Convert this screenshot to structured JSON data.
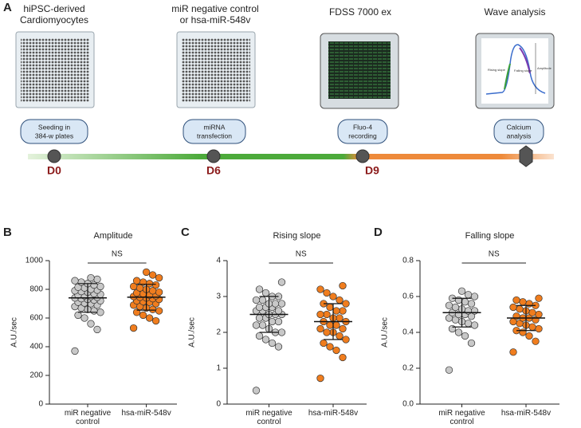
{
  "workflow": {
    "panel_label": "A",
    "steps": [
      {
        "title": [
          "hiPSC-derived",
          "Cardiomyocytes"
        ],
        "box": [
          "Seeding in",
          "384-w plates"
        ],
        "day": "D0"
      },
      {
        "title": [
          "miR negative control",
          "or hsa-miR-548v"
        ],
        "box": [
          "miRNA",
          "transfection"
        ],
        "day": "D6"
      },
      {
        "title": [
          "FDSS 7000 ex"
        ],
        "box": [
          "Fluo-4",
          "recording"
        ],
        "day": "D9"
      },
      {
        "title": [
          "Wave analysis"
        ],
        "box": [
          "Calcium",
          "analysis"
        ]
      }
    ],
    "wave_labels": [
      "Rising slope",
      "Falling slope",
      "Amplitude"
    ]
  },
  "chart_data": [
    {
      "type": "strip",
      "panel_label": "B",
      "title": "Amplitude",
      "ylabel": "A.U./sec",
      "categories": [
        "miR negative control",
        "hsa-miR-548v"
      ],
      "series": [
        {
          "color": "#c8c8c8",
          "mean": 740,
          "sd": 100,
          "values": [
            370,
            520,
            560,
            600,
            620,
            640,
            650,
            660,
            670,
            680,
            690,
            700,
            705,
            710,
            720,
            725,
            730,
            735,
            740,
            745,
            750,
            755,
            760,
            765,
            770,
            780,
            785,
            790,
            795,
            800,
            810,
            815,
            820,
            830,
            840,
            850,
            860,
            870,
            880
          ]
        },
        {
          "color": "#f07d1e",
          "mean": 745,
          "sd": 90,
          "values": [
            530,
            580,
            600,
            620,
            640,
            650,
            660,
            670,
            680,
            690,
            700,
            710,
            715,
            720,
            730,
            735,
            740,
            745,
            750,
            755,
            760,
            770,
            775,
            780,
            790,
            800,
            810,
            820,
            830,
            840,
            850,
            860,
            880,
            900,
            920
          ]
        }
      ],
      "ylim": [
        0,
        1000
      ],
      "yticks": [
        0,
        200,
        400,
        600,
        800,
        1000
      ],
      "annotation": "NS"
    },
    {
      "type": "strip",
      "panel_label": "C",
      "title": "Rising slope",
      "ylabel": "A.U./sec",
      "categories": [
        "miR negative control",
        "hsa-miR-548v"
      ],
      "series": [
        {
          "color": "#c8c8c8",
          "mean": 2.5,
          "sd": 0.5,
          "values": [
            0.38,
            1.6,
            1.7,
            1.8,
            1.9,
            2.0,
            2.0,
            2.1,
            2.2,
            2.2,
            2.3,
            2.3,
            2.4,
            2.4,
            2.5,
            2.5,
            2.5,
            2.6,
            2.6,
            2.6,
            2.7,
            2.7,
            2.7,
            2.8,
            2.8,
            2.8,
            2.9,
            2.9,
            3.0,
            3.0,
            3.1,
            3.2,
            3.4
          ]
        },
        {
          "color": "#f07d1e",
          "mean": 2.3,
          "sd": 0.5,
          "values": [
            0.72,
            1.3,
            1.5,
            1.6,
            1.7,
            1.8,
            1.9,
            2.0,
            2.0,
            2.1,
            2.1,
            2.2,
            2.2,
            2.3,
            2.3,
            2.4,
            2.4,
            2.5,
            2.5,
            2.6,
            2.6,
            2.7,
            2.8,
            2.8,
            2.9,
            3.0,
            3.1,
            3.2,
            3.3
          ]
        }
      ],
      "ylim": [
        0,
        4
      ],
      "yticks": [
        0,
        1,
        2,
        3,
        4
      ],
      "annotation": "NS"
    },
    {
      "type": "strip",
      "panel_label": "D",
      "title": "Falling slope",
      "ylabel": "A.U./sec",
      "categories": [
        "miR negative control",
        "hsa-miR-548v"
      ],
      "series": [
        {
          "color": "#c8c8c8",
          "mean": 0.51,
          "sd": 0.08,
          "values": [
            0.19,
            0.34,
            0.38,
            0.4,
            0.42,
            0.44,
            0.45,
            0.46,
            0.47,
            0.48,
            0.49,
            0.5,
            0.5,
            0.51,
            0.52,
            0.52,
            0.53,
            0.54,
            0.55,
            0.56,
            0.57,
            0.58,
            0.59,
            0.6,
            0.61,
            0.63
          ]
        },
        {
          "color": "#f07d1e",
          "mean": 0.48,
          "sd": 0.07,
          "values": [
            0.29,
            0.35,
            0.38,
            0.4,
            0.41,
            0.42,
            0.43,
            0.44,
            0.45,
            0.46,
            0.47,
            0.48,
            0.48,
            0.49,
            0.5,
            0.51,
            0.52,
            0.53,
            0.54,
            0.55,
            0.56,
            0.57,
            0.58,
            0.59
          ]
        }
      ],
      "ylim": [
        0,
        0.8
      ],
      "yticks": [
        {
          "value": 0,
          "label": "0.0"
        },
        0.2,
        0.4,
        0.6,
        0.8
      ],
      "annotation": "NS"
    }
  ]
}
